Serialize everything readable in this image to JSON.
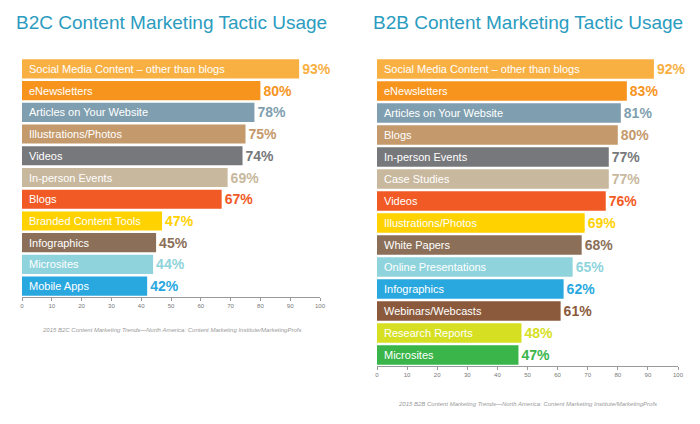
{
  "chart_data": [
    {
      "type": "bar",
      "title": "B2C Content Marketing Tactic Usage",
      "orientation": "horizontal",
      "data_labels": true,
      "tick_labels": "x",
      "grid": false,
      "categories": [
        "Social Media Content – other than blogs",
        "eNewsletters",
        "Articles on Your Website",
        "Illustrations/Photos",
        "Videos",
        "In-person Events",
        "Blogs",
        "Branded Content Tools",
        "Infographics",
        "Microsites",
        "Mobile Apps"
      ],
      "values": [
        93,
        80,
        78,
        75,
        74,
        69,
        67,
        47,
        45,
        44,
        42
      ],
      "value_labels": [
        "93%",
        "80%",
        "78%",
        "75%",
        "74%",
        "69%",
        "67%",
        "47%",
        "45%",
        "44%",
        "42%"
      ],
      "colors": [
        "#f9b042",
        "#f7941d",
        "#7f9fb0",
        "#c4996c",
        "#77787b",
        "#c8b89e",
        "#f15a24",
        "#ffd200",
        "#8b6f58",
        "#8fd4dc",
        "#29a8e0"
      ],
      "xlim": [
        0,
        100
      ],
      "xticks": [
        0,
        10,
        20,
        30,
        40,
        50,
        60,
        70,
        80,
        90,
        100
      ],
      "annotations": [
        "2015 B2C Content Marketing Trends—North America: Content Marketing Institute/MarketingProfs"
      ]
    },
    {
      "type": "bar",
      "title": "B2B Content Marketing Tactic Usage",
      "orientation": "horizontal",
      "data_labels": true,
      "tick_labels": "x",
      "grid": false,
      "categories": [
        "Social Media Content – other than blogs",
        "eNewsletters",
        "Articles on Your Website",
        "Blogs",
        "In-person Events",
        "Case Studies",
        "Videos",
        "Illustrations/Photos",
        "White Papers",
        "Online Presentations",
        "Infographics",
        "Webinars/Webcasts",
        "Research Reports",
        "Microsites"
      ],
      "values": [
        92,
        83,
        81,
        80,
        77,
        77,
        76,
        69,
        68,
        65,
        62,
        61,
        48,
        47
      ],
      "value_labels": [
        "92%",
        "83%",
        "81%",
        "80%",
        "77%",
        "77%",
        "76%",
        "69%",
        "68%",
        "65%",
        "62%",
        "61%",
        "48%",
        "47%"
      ],
      "colors": [
        "#f9b042",
        "#f7941d",
        "#7f9fb0",
        "#c4996c",
        "#77787b",
        "#c8b89e",
        "#f15a24",
        "#ffd200",
        "#8b6f58",
        "#8fd4dc",
        "#29a8e0",
        "#8b5a3c",
        "#d7df23",
        "#39b54a"
      ],
      "xlim": [
        0,
        100
      ],
      "xticks": [
        0,
        10,
        20,
        30,
        40,
        50,
        60,
        70,
        80,
        90,
        100
      ],
      "annotations": [
        "2015 B2B Content Marketing Trends—North America: Content Marketing Institute/MarketingProfs"
      ]
    }
  ]
}
